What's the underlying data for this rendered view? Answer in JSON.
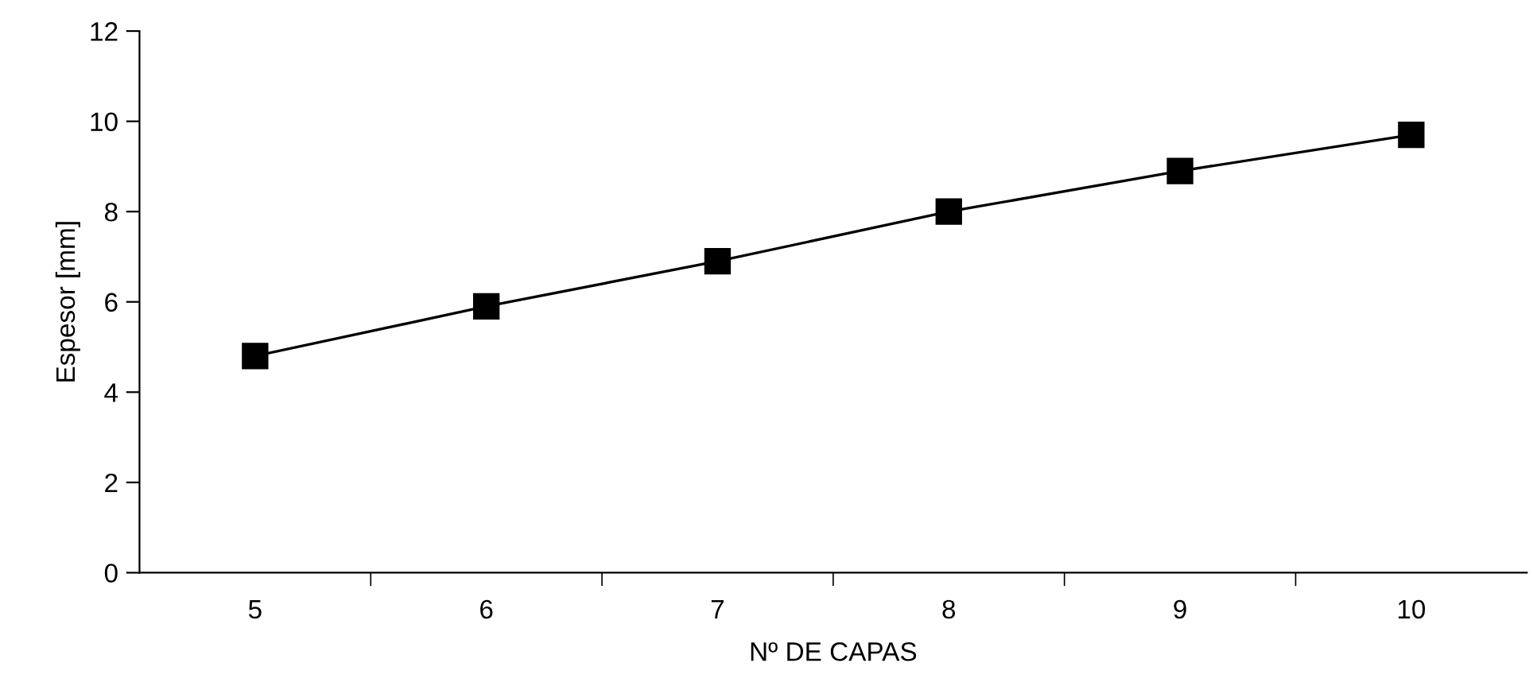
{
  "chart_data": {
    "type": "line",
    "xlabel": "Nº DE CAPAS",
    "ylabel": "Espesor [mm]",
    "categories": [
      "5",
      "6",
      "7",
      "8",
      "9",
      "10"
    ],
    "series": [
      {
        "color": "#000000",
        "values": [
          4.8,
          5.9,
          6.9,
          8.0,
          8.9,
          9.7
        ]
      }
    ],
    "ylim": [
      0,
      12
    ],
    "yticks": [
      0,
      2,
      4,
      6,
      8,
      10,
      12
    ],
    "marker": "square",
    "line_style": "solid",
    "grid": false,
    "legend": false
  }
}
